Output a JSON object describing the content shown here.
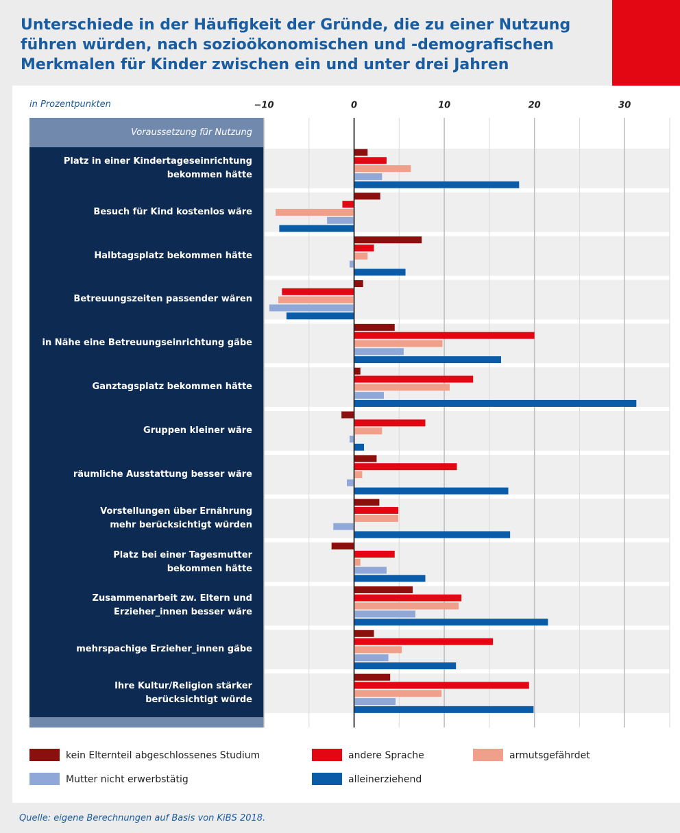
{
  "chart_data": {
    "type": "bar",
    "orientation": "horizontal",
    "title": "Unterschiede in der Häufigkeit der Gründe, die zu einer Nutzung\nführen würden, nach sozioökonomischen und -demografischen\nMerkmalen für Kinder zwischen ein und unter drei Jahren",
    "axis_label": "in Prozentpunkten",
    "category_header": "Voraussetzung für Nutzung",
    "source": "Quelle: eigene Berechnungen auf Basis von KiBS 2018.",
    "categories": [
      "Platz in einer Kindertageseinrichtung\nbekommen hätte",
      "Besuch für Kind kostenlos wäre",
      "Halbtagsplatz bekommen hätte",
      "Betreuungszeiten passender wären",
      "in Nähe eine Betreuungseinrichtung gäbe",
      "Ganztagsplatz bekommen hätte",
      "Gruppen kleiner wäre",
      "räumliche Ausstattung besser wäre",
      "Vorstellungen über Ernährung\nmehr berücksichtigt würden",
      "Platz bei einer Tagesmutter\nbekommen hätte",
      "Zusammenarbeit zw. Eltern und\nErzieher_innen besser wäre",
      "mehrspachige Erzieher_innen gäbe",
      "Ihre Kultur/Religion stärker\nberücksichtigt würde"
    ],
    "series": [
      {
        "name": "kein Elternteil abgeschlossenes Studium",
        "color": "#8b0f0c",
        "values": [
          1.5,
          2.9,
          7.5,
          1.0,
          4.5,
          0.7,
          -1.4,
          2.5,
          2.8,
          -2.5,
          6.5,
          2.2,
          4.0
        ]
      },
      {
        "name": "andere Sprache",
        "color": "#e30613",
        "values": [
          3.6,
          -1.3,
          2.2,
          -8.0,
          20.0,
          13.2,
          7.9,
          11.4,
          4.9,
          4.5,
          11.9,
          15.4,
          19.4
        ]
      },
      {
        "name": "armutsgefährdet",
        "color": "#f0a08a",
        "values": [
          6.3,
          -8.7,
          1.5,
          -8.4,
          9.8,
          10.6,
          3.1,
          0.9,
          4.9,
          0.7,
          11.6,
          5.3,
          9.7
        ]
      },
      {
        "name": "Mutter nicht erwerbstätig",
        "color": "#8fa8d8",
        "values": [
          3.1,
          -3.0,
          -0.5,
          -9.4,
          5.5,
          3.3,
          -0.5,
          -0.8,
          -2.3,
          3.6,
          6.8,
          3.8,
          4.6
        ]
      },
      {
        "name": "alleinerziehend",
        "color": "#0b5ca8",
        "values": [
          18.3,
          -8.3,
          5.7,
          -7.5,
          16.3,
          31.3,
          1.1,
          17.1,
          17.3,
          7.9,
          21.5,
          11.3,
          19.9
        ]
      }
    ],
    "xlim": [
      -10,
      35
    ],
    "xticks": [
      {
        "value": -10,
        "label": "−10"
      },
      0,
      10,
      20,
      30
    ],
    "minor_xticks": [
      -5,
      5,
      15,
      25,
      35
    ],
    "grid": true
  }
}
